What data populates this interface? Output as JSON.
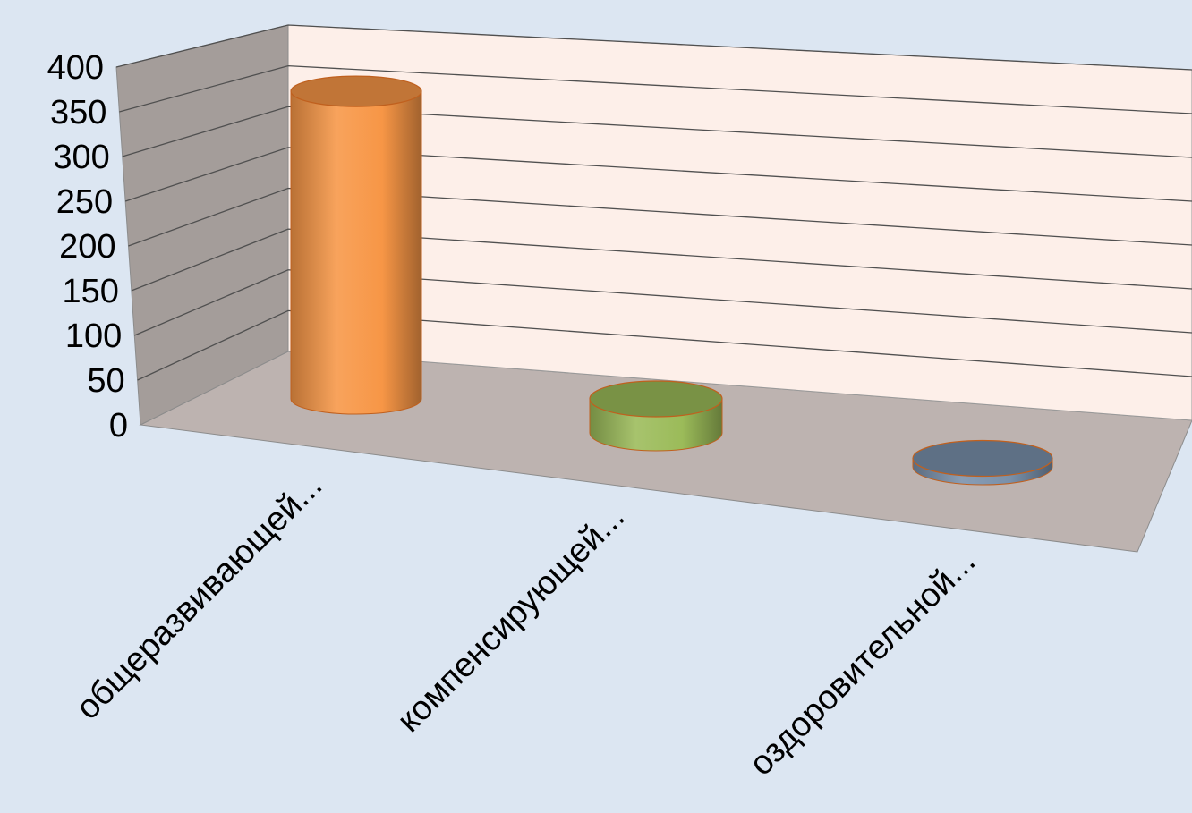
{
  "chart_data": {
    "type": "bar",
    "bar_shape": "cylinder",
    "three_d": true,
    "categories": [
      "общеразвивающей...",
      "компенсирующей...",
      "оздоровительной..."
    ],
    "values": [
      362,
      40,
      10
    ],
    "bar_colors": [
      "#f79646",
      "#9bbb59",
      "#7990aa"
    ],
    "ylim": [
      0,
      400
    ],
    "yticks": [
      "0",
      "50",
      "100",
      "150",
      "200",
      "250",
      "300",
      "350",
      "400"
    ],
    "grid": true,
    "legend": "none",
    "title": "",
    "xlabel": "",
    "ylabel": ""
  },
  "colors": {
    "background": "#dce6f2",
    "back_wall": "#fdefe9",
    "side_wall": "#a49d9a",
    "floor": "#bdb3b0",
    "gridline": "#505050"
  }
}
